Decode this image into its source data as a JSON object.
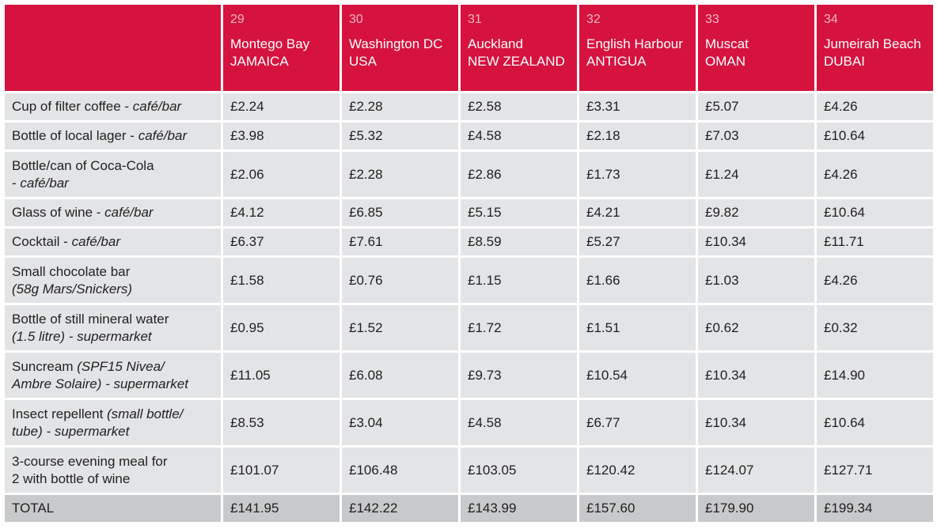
{
  "destinations": [
    {
      "num": "29",
      "city": "Montego Bay",
      "country": "JAMAICA"
    },
    {
      "num": "30",
      "city": "Washington DC",
      "country": "USA"
    },
    {
      "num": "31",
      "city": "Auckland",
      "country": "NEW ZEALAND"
    },
    {
      "num": "32",
      "city": "English Harbour",
      "country": "ANTIGUA"
    },
    {
      "num": "33",
      "city": "Muscat",
      "country": "OMAN"
    },
    {
      "num": "34",
      "city": "Jumeirah Beach",
      "country": "DUBAI"
    }
  ],
  "rows": [
    {
      "label_a": "Cup of filter coffee - ",
      "label_b": "café/bar",
      "label_c": "",
      "label_d": "",
      "values": [
        "£2.24",
        "£2.28",
        "£2.58",
        "£3.31",
        "£5.07",
        "£4.26"
      ]
    },
    {
      "label_a": "Bottle of local lager - ",
      "label_b": "café/bar",
      "label_c": "",
      "label_d": "",
      "values": [
        "£3.98",
        "£5.32",
        "£4.58",
        "£2.18",
        "£7.03",
        "£10.64"
      ]
    },
    {
      "label_a": "Bottle/can of Coca-Cola",
      "label_b": "",
      "label_c": "- ",
      "label_d": "café/bar",
      "values": [
        "£2.06",
        "£2.28",
        "£2.86",
        "£1.73",
        "£1.24",
        "£4.26"
      ]
    },
    {
      "label_a": "Glass of wine - ",
      "label_b": "café/bar",
      "label_c": "",
      "label_d": "",
      "values": [
        "£4.12",
        "£6.85",
        "£5.15",
        "£4.21",
        "£9.82",
        "£10.64"
      ]
    },
    {
      "label_a": "Cocktail - ",
      "label_b": "café/bar",
      "label_c": "",
      "label_d": "",
      "values": [
        "£6.37",
        "£7.61",
        "£8.59",
        "£5.27",
        "£10.34",
        "£11.71"
      ]
    },
    {
      "label_a": "Small chocolate bar",
      "label_b": "",
      "label_c": "",
      "label_d": "(58g Mars/Snickers)",
      "values": [
        "£1.58",
        "£0.76",
        "£1.15",
        "£1.66",
        "£1.03",
        "£4.26"
      ]
    },
    {
      "label_a": "Bottle of still mineral water",
      "label_b": "",
      "label_c": "",
      "label_d": "(1.5 litre) - supermarket",
      "values": [
        "£0.95",
        "£1.52",
        "£1.72",
        "£1.51",
        "£0.62",
        "£0.32"
      ]
    },
    {
      "label_a": "Suncream ",
      "label_b": "(SPF15 Nivea/",
      "label_c": "",
      "label_d": "Ambre Solaire) - supermarket",
      "values": [
        "£11.05",
        "£6.08",
        "£9.73",
        "£10.54",
        "£10.34",
        "£14.90"
      ]
    },
    {
      "label_a": "Insect repellent ",
      "label_b": "(small bottle/",
      "label_c": "",
      "label_d": "tube) - supermarket",
      "values": [
        "£8.53",
        "£3.04",
        "£4.58",
        "£6.77",
        "£10.34",
        "£10.64"
      ]
    },
    {
      "label_a": "3-course evening meal for",
      "label_b": "",
      "label_c": "2 with bottle of wine",
      "label_d": "",
      "values": [
        "£101.07",
        "£106.48",
        "£103.05",
        "£120.42",
        "£124.07",
        "£127.71"
      ]
    }
  ],
  "total": {
    "label": "TOTAL",
    "values": [
      "£141.95",
      "£142.22",
      "£143.99",
      "£157.60",
      "£179.90",
      "£199.34"
    ]
  },
  "colors": {
    "header_red": "#d6123e",
    "row_grey": "#e3e4e6",
    "total_grey": "#c8c9cb",
    "number_pink": "#f7b6c2"
  }
}
